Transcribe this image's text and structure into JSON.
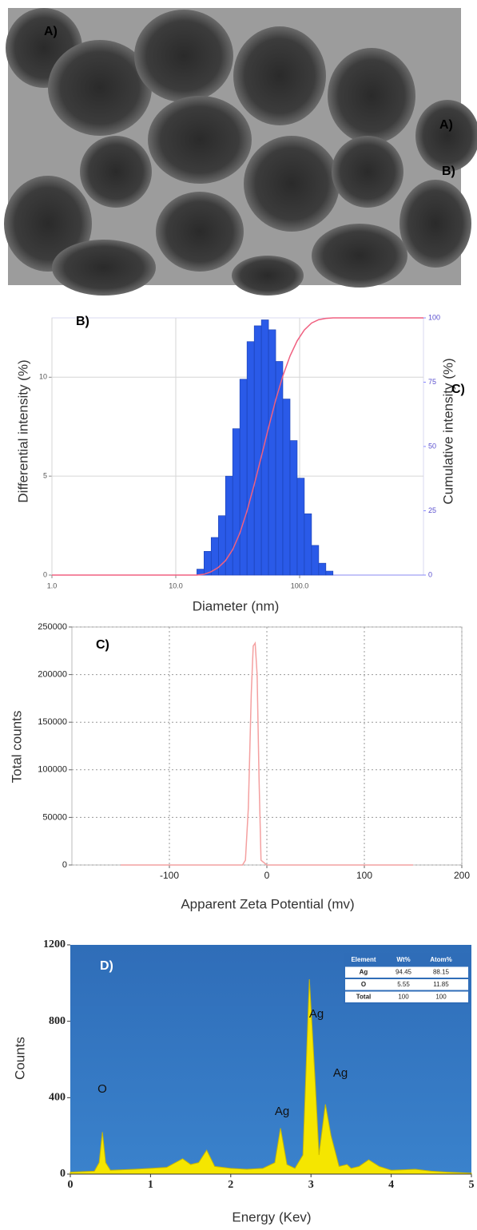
{
  "image_panel": {
    "labels": [
      "A)",
      "A)",
      "B)"
    ]
  },
  "chart_data": [
    {
      "type": "histogram",
      "annotations": [
        "B)",
        "C)"
      ],
      "x_label": "Diameter (nm)",
      "y_label": "Differential intensity (%)",
      "y2_label": "Cumulative intensity (%)",
      "log_x": true,
      "xlim": [
        1,
        1000
      ],
      "xticks": [
        {
          "value": 1,
          "label": "1.0"
        },
        {
          "value": 10,
          "label": "10.0"
        },
        {
          "value": 100,
          "label": "100.0"
        }
      ],
      "ylim": [
        0,
        13
      ],
      "yticks": [
        0,
        5,
        10
      ],
      "y2lim": [
        0,
        100
      ],
      "y2ticks": [
        0,
        25,
        50,
        75,
        100
      ],
      "grid": true,
      "color": "#2a5ae8",
      "bins": [
        14.8,
        16.9,
        19.3,
        22.1,
        25.2,
        28.8,
        32.9,
        37.6,
        43.0,
        49.1,
        56.1,
        64.1,
        73.2,
        83.7,
        95.6,
        109.2,
        124.8,
        142.6,
        162.9,
        186.1
      ],
      "values": [
        0.3,
        1.2,
        1.9,
        3.0,
        5.0,
        7.4,
        9.9,
        11.8,
        12.6,
        12.9,
        12.4,
        10.8,
        8.9,
        6.8,
        4.9,
        3.1,
        1.5,
        0.6,
        0.2
      ],
      "overlay_line": {
        "axis": "y2",
        "color": "#f06080",
        "x": [
          1,
          14.8,
          16.9,
          19.3,
          22.1,
          25.2,
          28.8,
          32.9,
          37.6,
          43.0,
          49.1,
          56.1,
          64.1,
          73.2,
          83.7,
          95.6,
          109.2,
          124.8,
          142.6,
          162.9,
          186.1,
          1000
        ],
        "values": [
          0,
          0,
          0.3,
          1.3,
          3.0,
          5.6,
          9.9,
          16.3,
          24.9,
          35.2,
          46.1,
          57.3,
          68.1,
          77.4,
          85.2,
          91.1,
          95.3,
          98.0,
          99.3,
          99.8,
          100,
          100
        ]
      }
    },
    {
      "type": "line",
      "annotations": [
        "C)"
      ],
      "x_label": "Apparent Zeta Potential (mv)",
      "y_label": "Total counts",
      "xlim": [
        -200,
        200
      ],
      "xticks": [
        -100,
        0,
        100,
        200
      ],
      "ylim": [
        0,
        250000
      ],
      "yticks": [
        0,
        50000,
        100000,
        150000,
        200000,
        250000
      ],
      "grid": true,
      "color": "#f4a0a0",
      "x": [
        -150,
        -100,
        -50,
        -25,
        -22,
        -19,
        -16,
        -14,
        -12,
        -10,
        -8,
        -6,
        0,
        50,
        100,
        150
      ],
      "values": [
        0,
        0,
        0,
        0,
        5000,
        60000,
        180000,
        230000,
        233000,
        200000,
        90000,
        5000,
        0,
        0,
        0,
        0
      ]
    },
    {
      "type": "area",
      "annotations": [
        "D)"
      ],
      "peak_labels": [
        "O",
        "Ag",
        "Ag",
        "Ag"
      ],
      "x_label": "Energy (Kev)",
      "y_label": "Counts",
      "xlim": [
        0,
        5
      ],
      "xticks": [
        0,
        1,
        2,
        3,
        4,
        5
      ],
      "ylim": [
        0,
        1200
      ],
      "yticks": [
        0,
        400,
        800,
        1200
      ],
      "color": "#f5e600",
      "x": [
        0,
        0.3,
        0.36,
        0.4,
        0.44,
        0.5,
        0.8,
        1.0,
        1.2,
        1.4,
        1.5,
        1.6,
        1.7,
        1.8,
        2.0,
        2.2,
        2.4,
        2.55,
        2.62,
        2.7,
        2.8,
        2.9,
        2.98,
        3.05,
        3.1,
        3.18,
        3.25,
        3.35,
        3.45,
        3.5,
        3.6,
        3.72,
        3.85,
        4.0,
        4.3,
        4.5,
        4.7,
        5.0
      ],
      "values": [
        10,
        15,
        60,
        220,
        60,
        20,
        25,
        30,
        35,
        80,
        50,
        60,
        125,
        40,
        30,
        25,
        30,
        60,
        240,
        50,
        30,
        100,
        1020,
        500,
        100,
        365,
        200,
        40,
        50,
        30,
        40,
        75,
        40,
        20,
        25,
        15,
        10,
        5
      ],
      "table": {
        "header": [
          "Element",
          "Wt%",
          "Atom%"
        ],
        "rows": [
          [
            "Ag",
            "94.45",
            "88.15"
          ],
          [
            "O",
            "5.55",
            "11.85"
          ],
          [
            "Total",
            "100",
            "100"
          ]
        ]
      }
    }
  ]
}
